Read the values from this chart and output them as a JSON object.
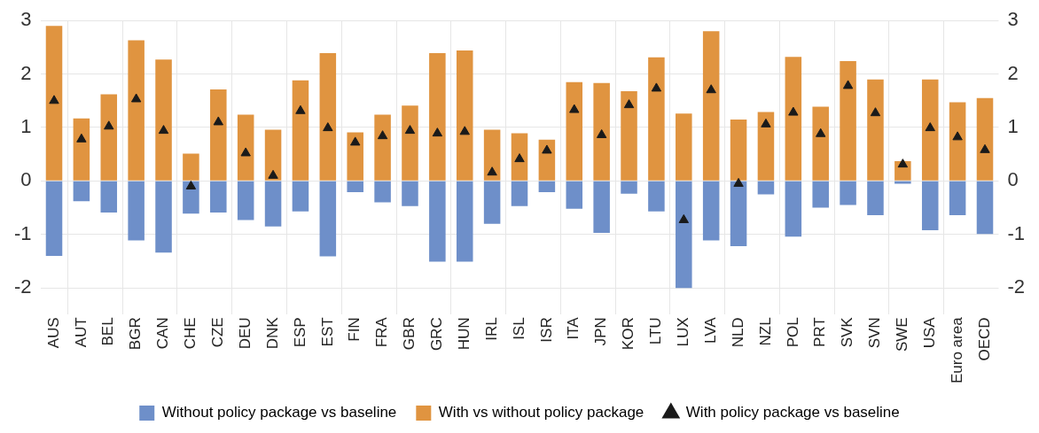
{
  "chart_data": {
    "type": "bar",
    "stacked": true,
    "categories": [
      "AUS",
      "AUT",
      "BEL",
      "BGR",
      "CAN",
      "CHE",
      "CZE",
      "DEU",
      "DNK",
      "ESP",
      "EST",
      "FIN",
      "FRA",
      "GBR",
      "GRC",
      "HUN",
      "IRL",
      "ISL",
      "ISR",
      "ITA",
      "JPN",
      "KOR",
      "LTU",
      "LUX",
      "LVA",
      "NLD",
      "NZL",
      "POL",
      "PRT",
      "SVK",
      "SVN",
      "SWE",
      "USA",
      "Euro area",
      "OECD"
    ],
    "series": [
      {
        "name": "Without policy package vs baseline",
        "color": "#6e8fc9",
        "values": [
          -1.4,
          -0.38,
          -0.59,
          -1.11,
          -1.34,
          -0.61,
          -0.59,
          -0.73,
          -0.85,
          -0.57,
          -1.41,
          -0.21,
          -0.4,
          -0.47,
          -1.51,
          -1.51,
          -0.8,
          -0.47,
          -0.21,
          -0.52,
          -0.97,
          -0.24,
          -0.57,
          -2.0,
          -1.11,
          -1.22,
          -0.25,
          -1.04,
          -0.5,
          -0.45,
          -0.64,
          -0.05,
          -0.92,
          -0.64,
          -0.99
        ]
      },
      {
        "name": "With vs without policy package",
        "color": "#e09440",
        "values": [
          2.9,
          1.17,
          1.62,
          2.63,
          2.27,
          0.51,
          1.71,
          1.24,
          0.96,
          1.88,
          2.39,
          0.91,
          1.24,
          1.41,
          2.39,
          2.44,
          0.96,
          0.89,
          0.77,
          1.85,
          1.83,
          1.68,
          2.31,
          1.26,
          2.8,
          1.15,
          1.29,
          2.32,
          1.39,
          2.24,
          1.9,
          0.37,
          1.9,
          1.47,
          1.55
        ]
      },
      {
        "name": "With policy package vs baseline",
        "type": "scatter",
        "marker": "triangle",
        "color": "#1a1a1a",
        "x": [
          "AUS",
          "AUT",
          "BEL",
          "BGR",
          "CAN",
          "CHE",
          "CZE",
          "DEU",
          "DNK",
          "ESP",
          "EST",
          "FIN",
          "FRA",
          "GBR",
          "GRC",
          "HUN",
          "IRL",
          "ISL",
          "ISR",
          "ITA",
          "JPN",
          "KOR",
          "LTU",
          "LUX",
          "LVA",
          "NLD",
          "NZL",
          "POL",
          "PRT",
          "SVK",
          "SVN",
          "SWE",
          "USA",
          "Euro area",
          "OECD"
        ],
        "values": [
          1.5,
          0.78,
          1.02,
          1.53,
          0.94,
          -0.1,
          1.1,
          0.52,
          0.1,
          1.31,
          0.99,
          0.72,
          0.84,
          0.94,
          0.89,
          0.92,
          0.16,
          0.41,
          0.57,
          1.33,
          0.86,
          1.42,
          1.73,
          -0.73,
          1.7,
          -0.05,
          1.06,
          1.28,
          0.88,
          1.78,
          1.27,
          0.31,
          0.99,
          0.82,
          0.58
        ]
      }
    ],
    "ylim": [
      -2.5,
      3
    ],
    "yticks": [
      -2,
      -1,
      0,
      1,
      2,
      3
    ],
    "y2lim": [
      -2.5,
      3
    ],
    "y2ticks": [
      -2,
      -1,
      0,
      1,
      2,
      3
    ],
    "grid": true,
    "legend": "bottom"
  }
}
